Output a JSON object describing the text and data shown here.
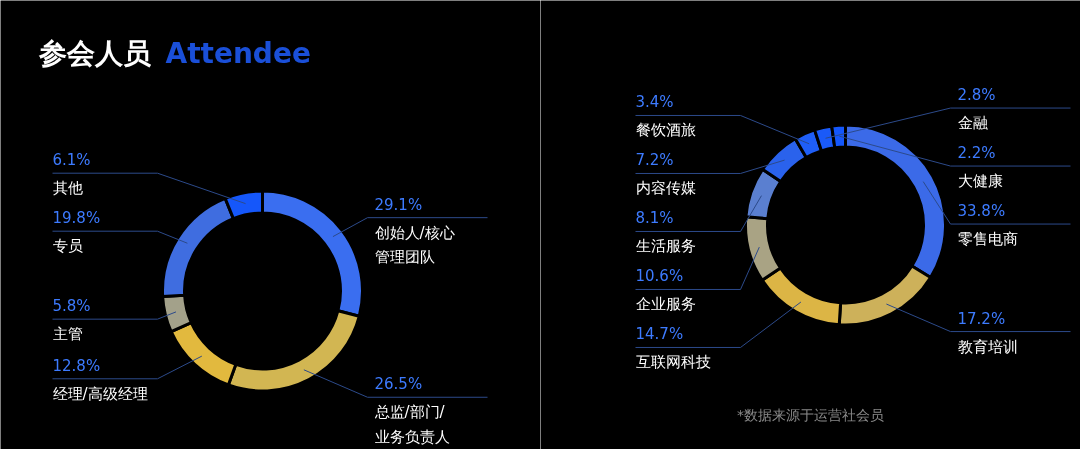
{
  "chart_data": [
    {
      "type": "donut",
      "title": "参会人员 Attendee",
      "categories": [
        "创始人/核心管理团队",
        "总监/部门/业务负责人",
        "经理/高级经理",
        "主管",
        "专员",
        "其他"
      ],
      "values": [
        29.1,
        26.5,
        12.8,
        5.8,
        19.8,
        6.1
      ],
      "value_labels": [
        "29.1%",
        "26.5%",
        "12.8%",
        "5.8%",
        "19.8%",
        "6.1%"
      ],
      "colors": [
        "#3a6ef0",
        "#d2b652",
        "#e2b93e",
        "#a3a18a",
        "#3f6de0",
        "#1557fa"
      ]
    },
    {
      "type": "donut",
      "categories": [
        "零售电商",
        "教育培训",
        "互联网科技",
        "企业服务",
        "生活服务",
        "内容传媒",
        "餐饮酒旅",
        "金融",
        "大健康"
      ],
      "values": [
        33.8,
        17.2,
        14.7,
        10.6,
        8.1,
        7.2,
        3.4,
        2.8,
        2.2
      ],
      "value_labels": [
        "33.8%",
        "17.2%",
        "14.7%",
        "10.6%",
        "8.1%",
        "7.2%",
        "3.4%",
        "2.8%",
        "2.2%"
      ],
      "colors": [
        "#3b6ae8",
        "#cdb15a",
        "#dcb545",
        "#a9a384",
        "#5a7fd0",
        "#2a62ec",
        "#1f5ef6",
        "#1a5af8",
        "#1457fc"
      ],
      "annotations": [
        "*数据来源于运营社会员"
      ]
    }
  ]
}
